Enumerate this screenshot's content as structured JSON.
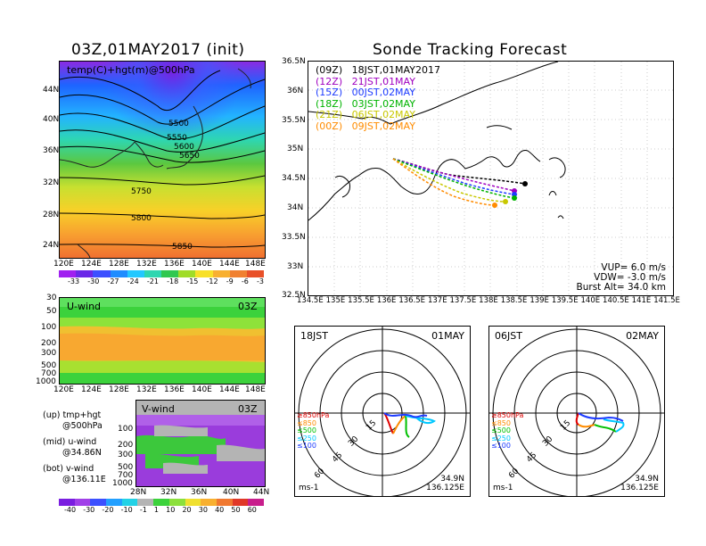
{
  "left_title": "03Z,01MAY2017 (init)",
  "right_title": "Sonde Tracking Forecast",
  "top_map": {
    "label": "temp(C)+hgt(m)@500hPa",
    "lat_ticks": [
      "44N",
      "40N",
      "36N",
      "32N",
      "28N",
      "24N"
    ],
    "lon_ticks": [
      "120E",
      "124E",
      "128E",
      "132E",
      "136E",
      "140E",
      "144E",
      "148E"
    ],
    "contour_labels": [
      "5500",
      "5550",
      "5600",
      "5650",
      "5750",
      "5800",
      "5850"
    ],
    "colorbar": [
      "-33",
      "-30",
      "-27",
      "-24",
      "-21",
      "-18",
      "-15",
      "-12",
      "-9",
      "-6",
      "-3"
    ]
  },
  "uwind": {
    "label": "U-wind",
    "time": "03Z",
    "p_ticks": [
      "30",
      "50",
      "100",
      "200",
      "300",
      "500",
      "700",
      "1000"
    ],
    "lon_ticks": [
      "120E",
      "124E",
      "128E",
      "132E",
      "136E",
      "140E",
      "144E",
      "148E"
    ]
  },
  "vwind": {
    "label": "V-wind",
    "time": "03Z",
    "p_ticks": [
      "100",
      "200",
      "300",
      "500",
      "700",
      "1000"
    ],
    "lat_ticks": [
      "28N",
      "32N",
      "36N",
      "40N",
      "44N"
    ]
  },
  "legend_text": {
    "up": "(up) tmp+hgt",
    "up2": "@500hPa",
    "mid": "(mid) u-wind",
    "mid2": "@34.86N",
    "bot": "(bot) v-wind",
    "bot2": "@136.11E"
  },
  "wind_colorbar": [
    "-40",
    "-30",
    "-20",
    "-10",
    "-1",
    "1",
    "10",
    "20",
    "30",
    "40",
    "50",
    "60"
  ],
  "track_map": {
    "lat_ticks": [
      "36.5N",
      "36N",
      "35.5N",
      "35N",
      "34.5N",
      "34N",
      "33.5N",
      "33N",
      "32.5N"
    ],
    "lon_ticks": [
      "134.5E",
      "135E",
      "135.5E",
      "136E",
      "136.5E",
      "137E",
      "137.5E",
      "138E",
      "138.5E",
      "139E",
      "139.5E",
      "140E",
      "140.5E",
      "141E",
      "141.5E"
    ],
    "runs": [
      {
        "init": "(09Z)",
        "launch": "18JST,01MAY2017",
        "color": "#000000"
      },
      {
        "init": "(12Z)",
        "launch": "21JST,01MAY",
        "color": "#a000c0"
      },
      {
        "init": "(15Z)",
        "launch": "00JST,02MAY",
        "color": "#1e3cff"
      },
      {
        "init": "(18Z)",
        "launch": "03JST,02MAY",
        "color": "#00b400"
      },
      {
        "init": "(21Z)",
        "launch": "06JST,02MAY",
        "color": "#c8c800"
      },
      {
        "init": "(00Z)",
        "launch": "09JST,02MAY",
        "color": "#ff8c00"
      }
    ],
    "vup": "VUP=  6.0  m/s",
    "vdw": "VDW= -3.0  m/s",
    "burst": "Burst Alt=  34.0  km"
  },
  "hodo_left": {
    "time": "18JST",
    "date": "01MAY",
    "levels": [
      "≥850hPa",
      "≤850",
      "≤500",
      "≤250",
      "≤100"
    ],
    "rings": [
      "15",
      "30",
      "45",
      "60"
    ],
    "unit": "ms-1",
    "lat": "34.9N",
    "lon": "136.125E"
  },
  "hodo_right": {
    "time": "06JST",
    "date": "02MAY",
    "levels": [
      "≥850hPa",
      "≤850",
      "≤500",
      "≤250",
      "≤100"
    ],
    "rings": [
      "15",
      "30",
      "45",
      "60"
    ],
    "unit": "ms-1",
    "lat": "34.9N",
    "lon": "136.125E"
  },
  "level_colors": [
    "#e00000",
    "#ff8c00",
    "#00c000",
    "#00c8ff",
    "#1e3cff"
  ]
}
